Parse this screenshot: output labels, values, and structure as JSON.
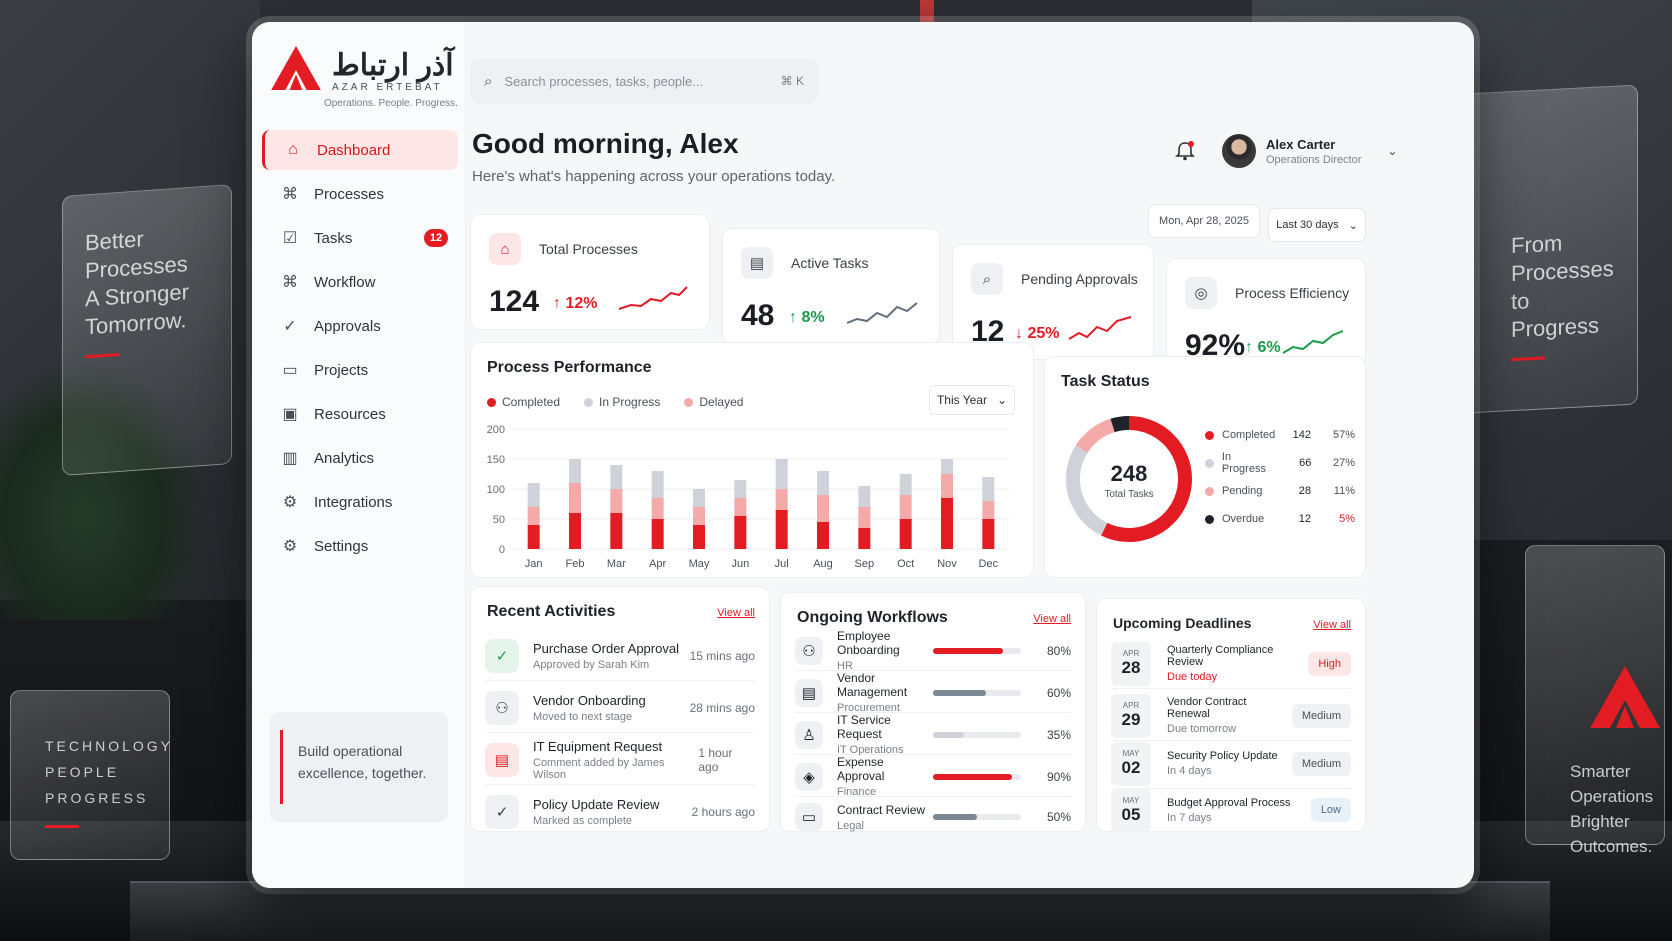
{
  "scene": {
    "left_card": {
      "lines": [
        "Better",
        "Processes",
        "A Stronger",
        "Tomorrow."
      ]
    },
    "right_card": {
      "lines": [
        "From",
        "Processes",
        "to Progress"
      ]
    },
    "bottom_left_card": {
      "lines": [
        "TECHNOLOGY",
        "PEOPLE",
        "PROGRESS"
      ]
    },
    "bottom_right_card": {
      "lines": [
        "Smarter",
        "Operations",
        "Brighter",
        "Outcomes."
      ]
    }
  },
  "brand": {
    "name_fa": "آذر ارتباط",
    "name_en": "AZAR ERTEBAT",
    "tagline": "Operations. People. Progress.",
    "accent": "#e31b23"
  },
  "sidebar": {
    "items": [
      {
        "label": "Dashboard",
        "icon": "home-icon",
        "active": true
      },
      {
        "label": "Processes",
        "icon": "nodes-icon"
      },
      {
        "label": "Tasks",
        "icon": "checklist-icon",
        "badge": "12"
      },
      {
        "label": "Workflow",
        "icon": "workflow-icon"
      },
      {
        "label": "Approvals",
        "icon": "check-circle-icon"
      },
      {
        "label": "Projects",
        "icon": "folder-icon"
      },
      {
        "label": "Resources",
        "icon": "resource-icon"
      },
      {
        "label": "Analytics",
        "icon": "bar-chart-icon"
      },
      {
        "label": "Integrations",
        "icon": "integration-icon"
      },
      {
        "label": "Settings",
        "icon": "gear-icon"
      }
    ],
    "cta": "Build operational excellence, together."
  },
  "header": {
    "search_placeholder": "Search processes, tasks, people...",
    "search_shortcut": "⌘ K",
    "greeting": "Good morning, Alex",
    "subtitle": "Here's what's happening across your operations today.",
    "user_name": "Alex Carter",
    "user_role": "Operations Director",
    "date": "Mon, Apr 28, 2025",
    "range": "Last 30 days"
  },
  "kpis": [
    {
      "label": "Total Processes",
      "value": "124",
      "change": "↑ 12%",
      "trend": "up-red",
      "icon": "home-icon"
    },
    {
      "label": "Active Tasks",
      "value": "48",
      "change": "↑ 8%",
      "trend": "up-green",
      "icon": "clipboard-icon"
    },
    {
      "label": "Pending Approvals",
      "value": "12",
      "change": "↓ 25%",
      "trend": "dn-red",
      "icon": "approval-search-icon"
    },
    {
      "label": "Process Efficiency",
      "value": "92%",
      "change": "↑ 6%",
      "trend": "up-green",
      "icon": "efficiency-icon"
    }
  ],
  "performance": {
    "title": "Process Performance",
    "period": "This Year",
    "colors": {
      "completed": "#e31b23",
      "in_progress": "#cfd3d9",
      "delayed": "#f4aaa9"
    }
  },
  "chart_data": {
    "type": "bar",
    "title": "Process Performance",
    "categories": [
      "Jan",
      "Feb",
      "Mar",
      "Apr",
      "May",
      "Jun",
      "Jul",
      "Aug",
      "Sep",
      "Oct",
      "Nov",
      "Dec"
    ],
    "series": [
      {
        "name": "Completed",
        "values": [
          40,
          60,
          60,
          50,
          40,
          55,
          65,
          45,
          35,
          50,
          85,
          50
        ]
      },
      {
        "name": "In Progress",
        "values": [
          40,
          40,
          40,
          45,
          30,
          30,
          50,
          40,
          35,
          35,
          25,
          40
        ]
      },
      {
        "name": "Delayed",
        "values": [
          30,
          50,
          40,
          35,
          30,
          30,
          35,
          45,
          35,
          40,
          40,
          30
        ]
      }
    ],
    "yticks": [
      0,
      50,
      100,
      150,
      200
    ],
    "ylim": [
      0,
      200
    ],
    "stacked": true,
    "legend": "top-left",
    "grid": true
  },
  "task_status": {
    "title": "Task Status",
    "total": "248",
    "total_label": "Total Tasks",
    "rows": [
      {
        "label": "Completed",
        "count": "142",
        "pct": "57%",
        "color": "#e31b23",
        "value": 142
      },
      {
        "label": "In Progress",
        "count": "66",
        "pct": "27%",
        "color": "#cfd3d9",
        "value": 66
      },
      {
        "label": "Pending",
        "count": "28",
        "pct": "11%",
        "color": "#f4aaa9",
        "value": 28
      },
      {
        "label": "Overdue",
        "count": "12",
        "pct": "5%",
        "color": "#1f2329",
        "value": 12
      }
    ]
  },
  "activities": {
    "title": "Recent Activities",
    "view_all": "View all",
    "items": [
      {
        "title": "Purchase Order Approval",
        "sub": "Approved by Sarah Kim",
        "time": "15 mins ago",
        "icon": "check-icon"
      },
      {
        "title": "Vendor Onboarding",
        "sub": "Moved to next stage",
        "time": "28 mins ago",
        "icon": "people-icon"
      },
      {
        "title": "IT Equipment Request",
        "sub": "Comment added by James Wilson",
        "time": "1 hour ago",
        "icon": "document-icon"
      },
      {
        "title": "Policy Update Review",
        "sub": "Marked as complete",
        "time": "2 hours ago",
        "icon": "check-circle-icon"
      }
    ]
  },
  "workflows": {
    "title": "Ongoing Workflows",
    "view_all": "View all",
    "items": [
      {
        "title": "Employee Onboarding",
        "sub": "HR",
        "pct": "80%",
        "value": 0.8,
        "color": "#e31b23"
      },
      {
        "title": "Vendor Management",
        "sub": "Procurement",
        "pct": "60%",
        "value": 0.6,
        "color": "#7c8794"
      },
      {
        "title": "IT Service Request",
        "sub": "IT Operations",
        "pct": "35%",
        "value": 0.35,
        "color": "#cfd3d9"
      },
      {
        "title": "Expense Approval",
        "sub": "Finance",
        "pct": "90%",
        "value": 0.9,
        "color": "#e31b23"
      },
      {
        "title": "Contract Review",
        "sub": "Legal",
        "pct": "50%",
        "value": 0.5,
        "color": "#7c8794"
      }
    ]
  },
  "deadlines": {
    "title": "Upcoming Deadlines",
    "view_all": "View all",
    "items": [
      {
        "month": "APR",
        "day": "28",
        "title": "Quarterly Compliance Review",
        "sub": "Due today",
        "priority": "High"
      },
      {
        "month": "APR",
        "day": "29",
        "title": "Vendor Contract Renewal",
        "sub": "Due tomorrow",
        "priority": "Medium"
      },
      {
        "month": "MAY",
        "day": "02",
        "title": "Security Policy Update",
        "sub": "In 4 days",
        "priority": "Medium"
      },
      {
        "month": "MAY",
        "day": "05",
        "title": "Budget Approval Process",
        "sub": "In 7 days",
        "priority": "Low"
      }
    ]
  }
}
